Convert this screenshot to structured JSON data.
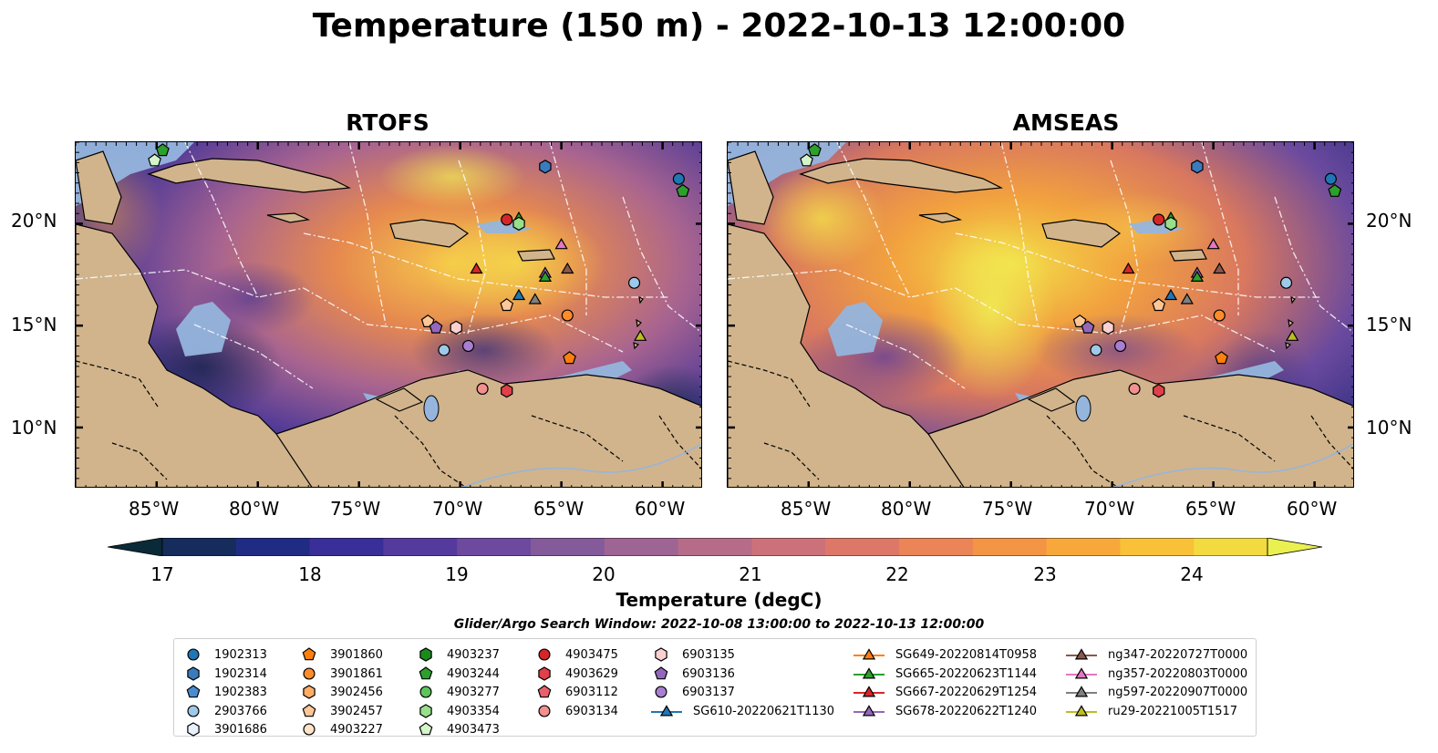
{
  "title": "Temperature (150 m) - 2022-10-13 12:00:00",
  "panels": [
    {
      "title": "RTOFS"
    },
    {
      "title": "AMSEAS"
    }
  ],
  "lon_labels": [
    "85°W",
    "80°W",
    "75°W",
    "70°W",
    "65°W",
    "60°W"
  ],
  "lat_labels": [
    "20°N",
    "15°N",
    "10°N"
  ],
  "colorbar": {
    "label": "Temperature (degC)",
    "ticks": [
      "17",
      "18",
      "19",
      "20",
      "21",
      "22",
      "23",
      "24"
    ],
    "colors": [
      "#0b2a38",
      "#152c5c",
      "#202c84",
      "#3a2f98",
      "#553a9e",
      "#6d4a9e",
      "#855a9a",
      "#9e6494",
      "#b66c88",
      "#cc717a",
      "#dd7868",
      "#eb8456",
      "#f49445",
      "#f8a83a",
      "#f8c138",
      "#f3da40",
      "#eaf04f"
    ]
  },
  "search_window": "Glider/Argo Search Window: 2022-10-08 13:00:00 to 2022-10-13 12:00:00",
  "legend": [
    {
      "label": "1902313",
      "marker": "circle",
      "color": "#1f77b4"
    },
    {
      "label": "1902314",
      "marker": "hexagon",
      "color": "#3a7bbd"
    },
    {
      "label": "1902383",
      "marker": "pentagon",
      "color": "#4a8cd0"
    },
    {
      "label": "2903766",
      "marker": "circle",
      "color": "#9ecae9"
    },
    {
      "label": "3901686",
      "marker": "hexagon",
      "color": "#e8f1fb"
    },
    {
      "label": "3901860",
      "marker": "pentagon",
      "color": "#ff7f0e"
    },
    {
      "label": "3901861",
      "marker": "circle",
      "color": "#ff8c2a"
    },
    {
      "label": "3902456",
      "marker": "hexagon",
      "color": "#ffad66"
    },
    {
      "label": "3902457",
      "marker": "pentagon",
      "color": "#ffc797"
    },
    {
      "label": "4903227",
      "marker": "circle",
      "color": "#ffe3c8"
    },
    {
      "label": "4903237",
      "marker": "hexagon",
      "color": "#1a8a1a"
    },
    {
      "label": "4903244",
      "marker": "pentagon",
      "color": "#2ca02c"
    },
    {
      "label": "4903277",
      "marker": "circle",
      "color": "#5cc65c"
    },
    {
      "label": "4903354",
      "marker": "hexagon",
      "color": "#98df8a"
    },
    {
      "label": "4903473",
      "marker": "pentagon",
      "color": "#d3f5c8"
    },
    {
      "label": "4903475",
      "marker": "circle",
      "color": "#d62728"
    },
    {
      "label": "4903629",
      "marker": "hexagon",
      "color": "#e0404a"
    },
    {
      "label": "6903112",
      "marker": "pentagon",
      "color": "#e8606a"
    },
    {
      "label": "6903134",
      "marker": "circle",
      "color": "#f28f8f"
    },
    {
      "label": "6903135",
      "marker": "hexagon",
      "color": "#fbd0d0"
    },
    {
      "label": "6903136",
      "marker": "pentagon",
      "color": "#9467bd"
    },
    {
      "label": "6903137",
      "marker": "circle",
      "color": "#a97fd1"
    },
    {
      "label": "SG610-20220621T1130",
      "marker": "triangle-line",
      "color": "#1f77b4"
    },
    {
      "label": "SG649-20220814T0958",
      "marker": "triangle-line",
      "color": "#ff7f0e"
    },
    {
      "label": "SG665-20220623T1144",
      "marker": "triangle-line",
      "color": "#2ca02c"
    },
    {
      "label": "SG667-20220629T1254",
      "marker": "triangle-line",
      "color": "#d62728"
    },
    {
      "label": "SG678-20220622T1240",
      "marker": "triangle-line",
      "color": "#9467bd"
    },
    {
      "label": "ng347-20220727T0000",
      "marker": "triangle-line",
      "color": "#8c564b"
    },
    {
      "label": "ng357-20220803T0000",
      "marker": "triangle-line",
      "color": "#e377c2"
    },
    {
      "label": "ng597-20220907T0000",
      "marker": "triangle-line",
      "color": "#7f7f7f"
    },
    {
      "label": "ru29-20221005T1517",
      "marker": "triangle-line",
      "color": "#bcbd22"
    }
  ],
  "observations": [
    {
      "id": "1902313",
      "lon": -59.2,
      "lat": 22.2
    },
    {
      "id": "1902314",
      "lon": -65.8,
      "lat": 22.8
    },
    {
      "id": "4903244",
      "lon": -84.7,
      "lat": 23.6
    },
    {
      "id": "4903473",
      "lon": -85.1,
      "lat": 23.1
    },
    {
      "id": "4903244",
      "lon": -59.0,
      "lat": 21.6
    },
    {
      "id": "4903475",
      "lon": -67.7,
      "lat": 20.2
    },
    {
      "id": "SG665-20220623T1144",
      "lon": -67.1,
      "lat": 20.3
    },
    {
      "id": "4903354",
      "lon": -67.1,
      "lat": 20.0
    },
    {
      "id": "ng357-20220803T0000",
      "lon": -65.0,
      "lat": 19.0
    },
    {
      "id": "SG667-20220629T1254",
      "lon": -69.2,
      "lat": 17.8
    },
    {
      "id": "ng347-20220727T0000",
      "lon": -64.7,
      "lat": 17.8
    },
    {
      "id": "SG678-20220622T1240",
      "lon": -65.8,
      "lat": 17.6
    },
    {
      "id": "SG665-20220623T1144",
      "lon": -65.8,
      "lat": 17.4
    },
    {
      "id": "2903766",
      "lon": -61.4,
      "lat": 17.1
    },
    {
      "id": "SG610-20220621T1130",
      "lon": -67.1,
      "lat": 16.5
    },
    {
      "id": "ng597-20220907T0000",
      "lon": -66.3,
      "lat": 16.3
    },
    {
      "id": "3902457",
      "lon": -67.7,
      "lat": 16.0
    },
    {
      "id": "3901861",
      "lon": -64.7,
      "lat": 15.5
    },
    {
      "id": "3902457",
      "lon": -71.6,
      "lat": 15.2
    },
    {
      "id": "6903136",
      "lon": -71.2,
      "lat": 14.9
    },
    {
      "id": "6903135",
      "lon": -70.2,
      "lat": 14.9
    },
    {
      "id": "ru29-20221005T1517",
      "lon": -61.1,
      "lat": 14.5
    },
    {
      "id": "6903137",
      "lon": -69.6,
      "lat": 14.0
    },
    {
      "id": "2903766",
      "lon": -70.8,
      "lat": 13.8
    },
    {
      "id": "3901860",
      "lon": -64.6,
      "lat": 13.4
    },
    {
      "id": "6903134",
      "lon": -68.9,
      "lat": 11.9
    },
    {
      "id": "4903629",
      "lon": -67.7,
      "lat": 11.8
    }
  ]
}
